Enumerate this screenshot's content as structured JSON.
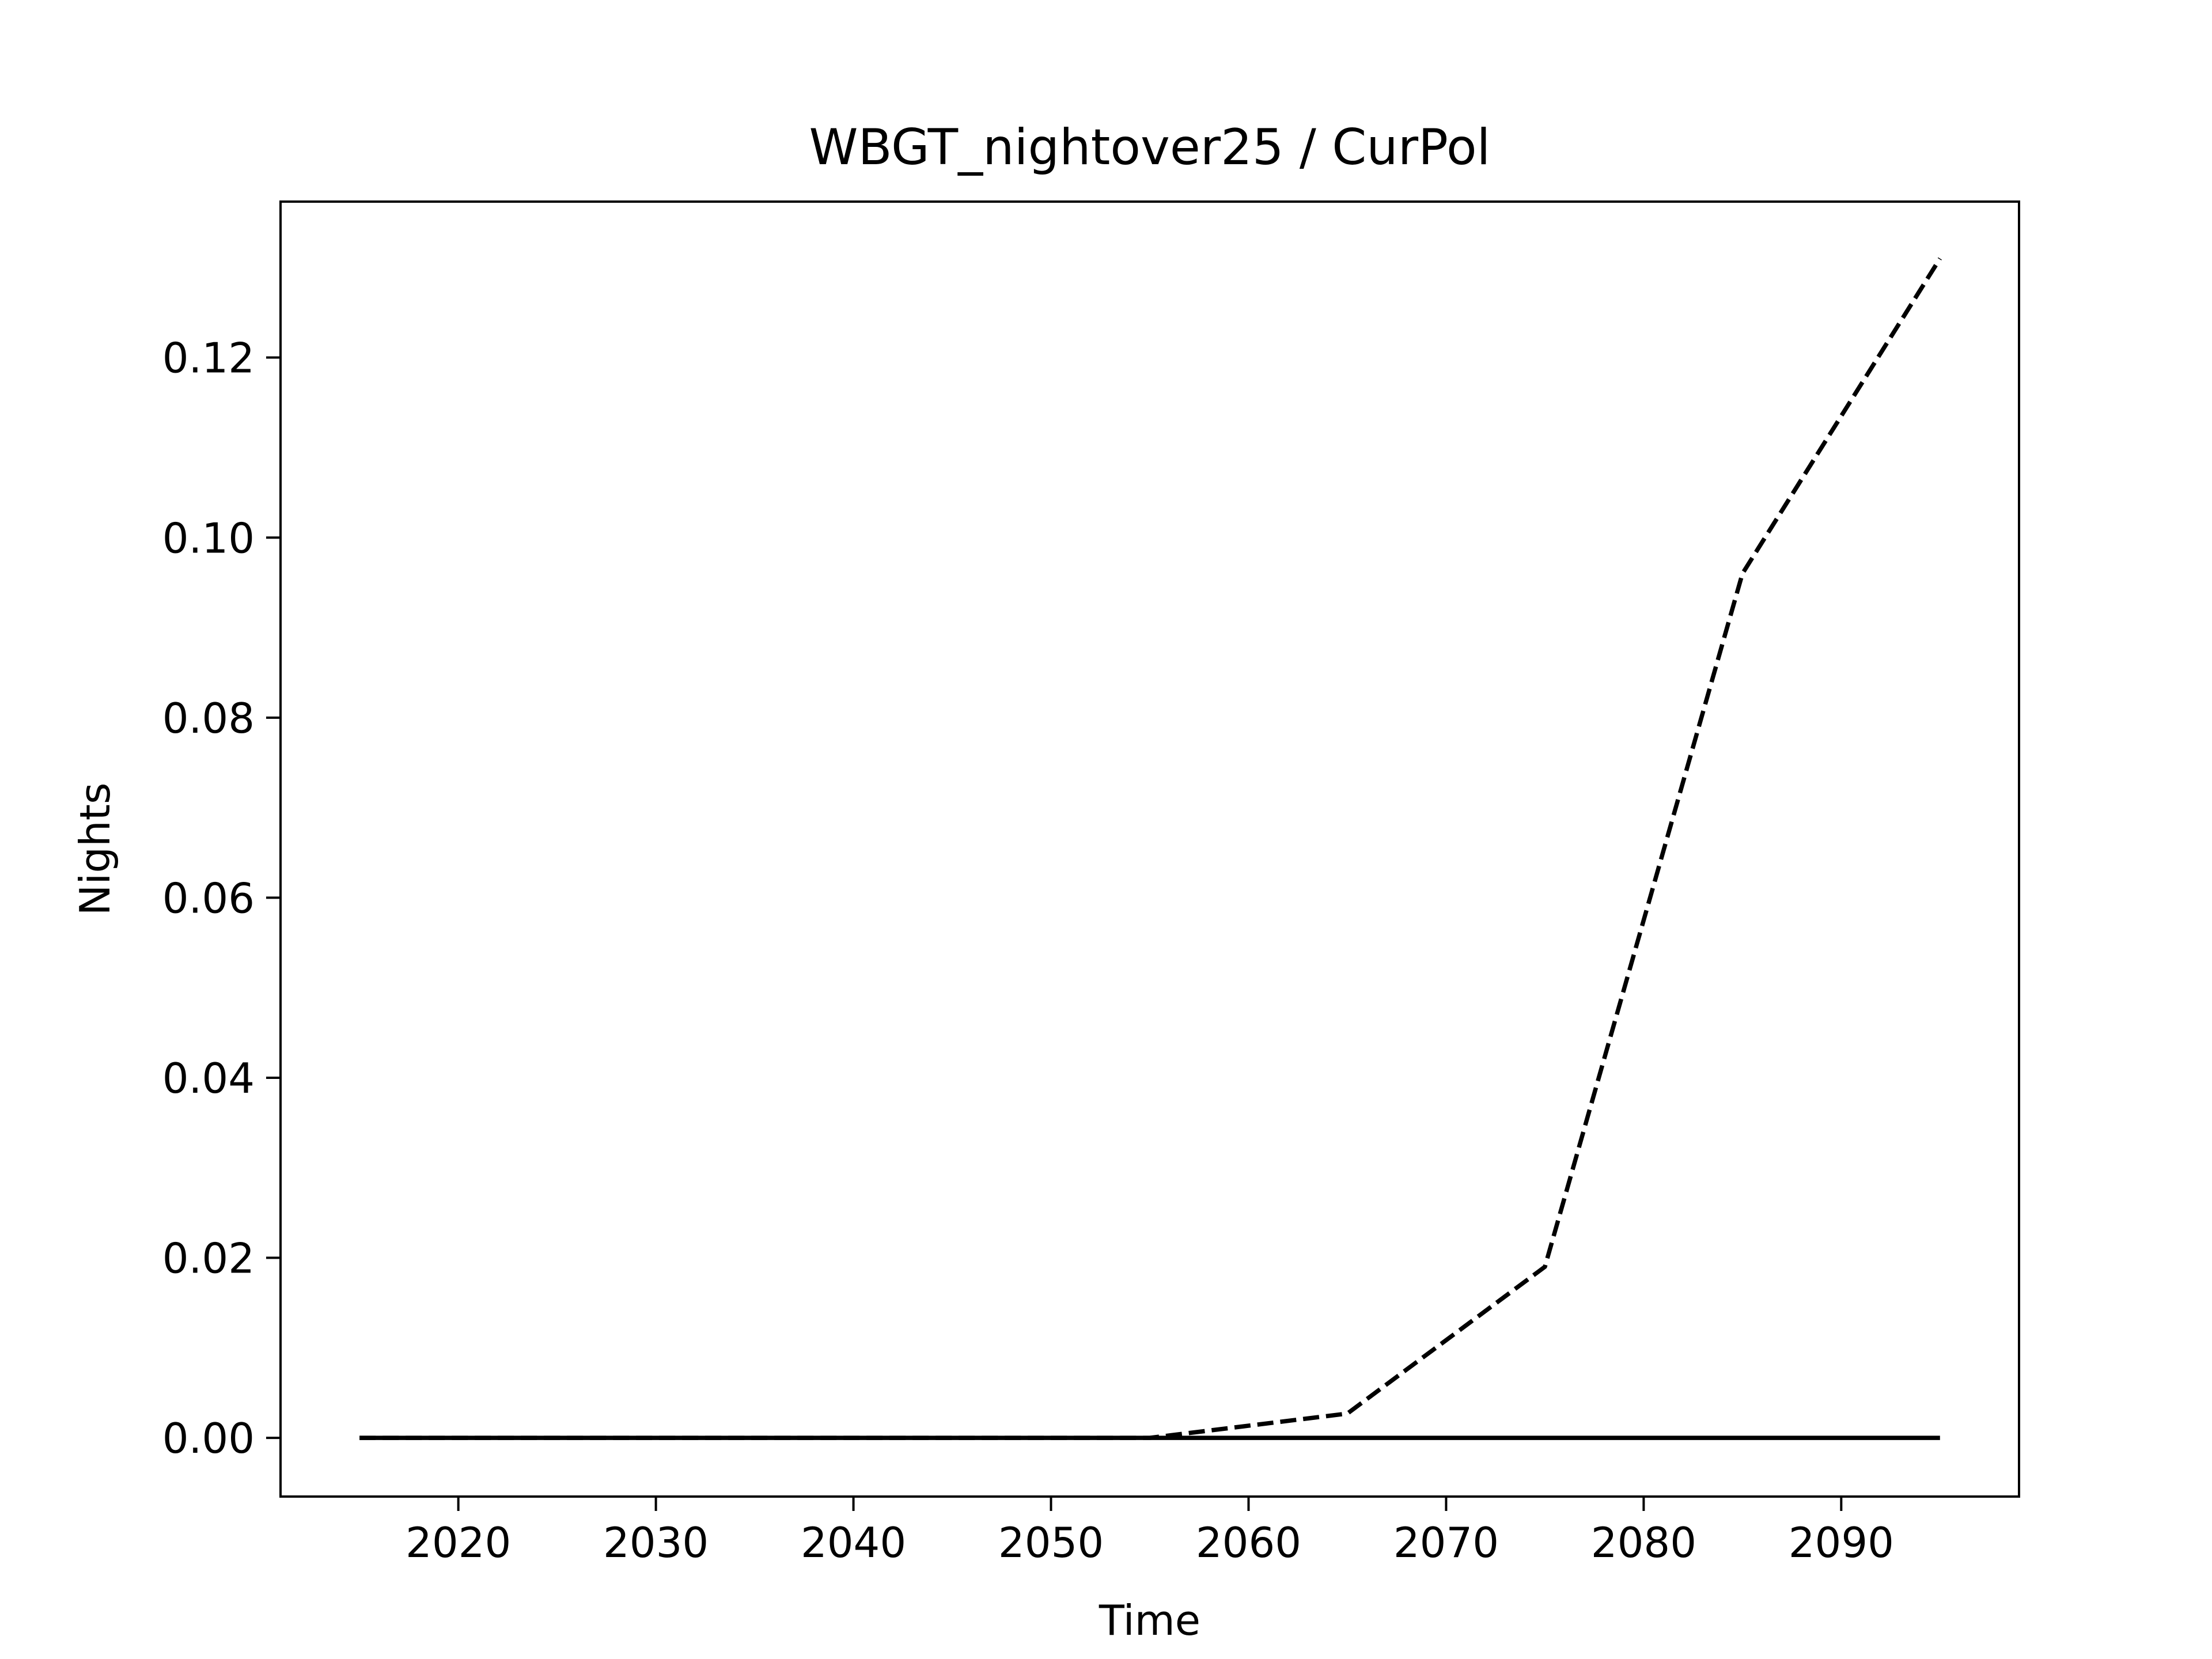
{
  "chart_data": {
    "type": "line",
    "title": "WBGT_nightover25 / CurPol",
    "xlabel": "Time",
    "ylabel": "Nights",
    "x": [
      2015,
      2025,
      2035,
      2045,
      2055,
      2065,
      2075,
      2085,
      2095
    ],
    "series": [
      {
        "color": "#000000",
        "style": "solid",
        "values": [
          0,
          0,
          0,
          0,
          0,
          0,
          0,
          0,
          0
        ]
      },
      {
        "color": "#000000",
        "style": "dashed",
        "values": [
          0,
          0,
          0,
          0,
          0,
          0.0027,
          0.019,
          0.096,
          0.131
        ]
      }
    ],
    "xlim": [
      2011,
      2099
    ],
    "xticks": [
      2020,
      2030,
      2040,
      2050,
      2060,
      2070,
      2080,
      2090
    ],
    "ylim": [
      -0.00652,
      0.13732
    ],
    "yticks": [
      {
        "value": 0,
        "label": "0.00"
      },
      0.02,
      0.04,
      0.06,
      0.08,
      {
        "value": 0.1,
        "label": "0.10"
      },
      0.12
    ],
    "grid": false
  }
}
